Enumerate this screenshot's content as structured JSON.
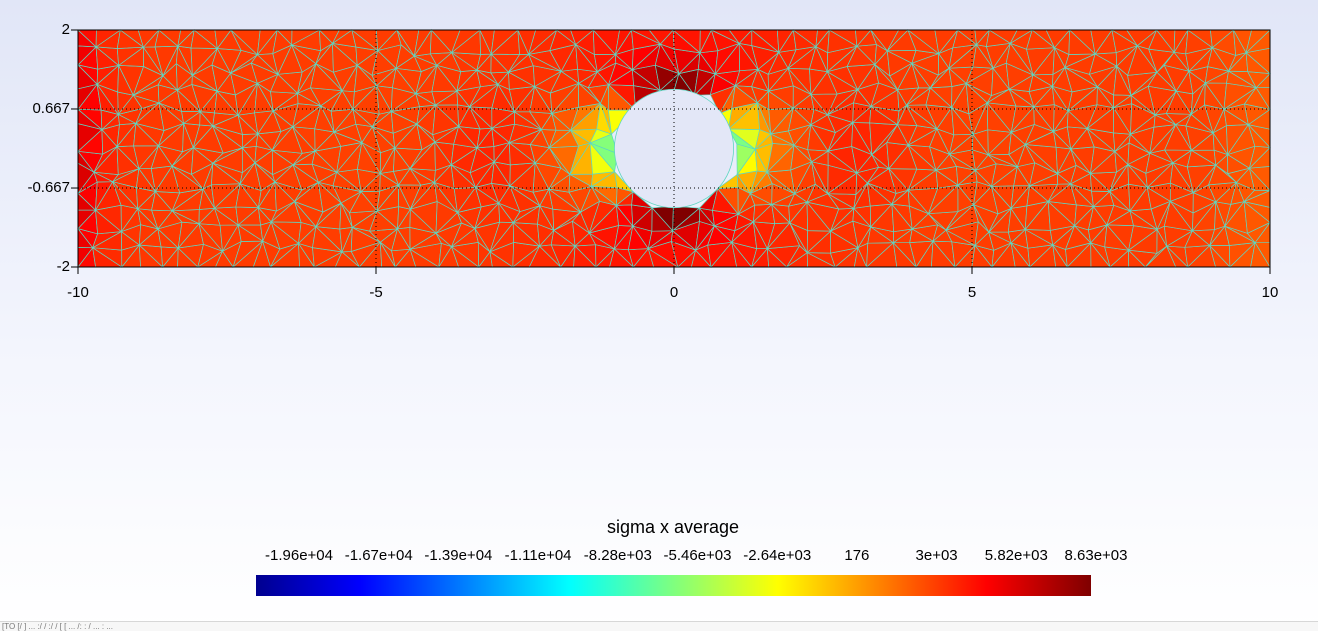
{
  "chart_data": {
    "type": "heatmap",
    "title": "sigma x average",
    "x_range": [
      -10,
      10
    ],
    "y_range": [
      -2,
      2
    ],
    "x_ticks": [
      "-10",
      "-5",
      "0",
      "5",
      "10"
    ],
    "x_tick_values": [
      -10,
      -5,
      0,
      5,
      10
    ],
    "y_ticks": [
      "2",
      "0.667",
      "-0.667",
      "-2"
    ],
    "y_tick_values": [
      2,
      0.667,
      -0.667,
      -2
    ],
    "grid": "dotted",
    "hole": {
      "center": [
        0,
        0
      ],
      "radius": 1
    },
    "colormap": "jet",
    "color_range": [
      -19600,
      8630
    ],
    "colorbar_ticks": [
      "-1.96e+04",
      "-1.67e+04",
      "-1.39e+04",
      "-1.11e+04",
      "-8.28e+03",
      "-5.46e+03",
      "-2.64e+03",
      "176",
      "3e+03",
      "5.82e+03",
      "8.63e+03"
    ],
    "colorbar_tick_values": [
      -19600,
      -16700,
      -13900,
      -11100,
      -8280,
      -5460,
      -2640,
      176,
      3000,
      5820,
      8630
    ]
  },
  "status_bar_text": "[TO [/ ] ... :/ / :/ / [ [ ... /: : / ... : ..."
}
